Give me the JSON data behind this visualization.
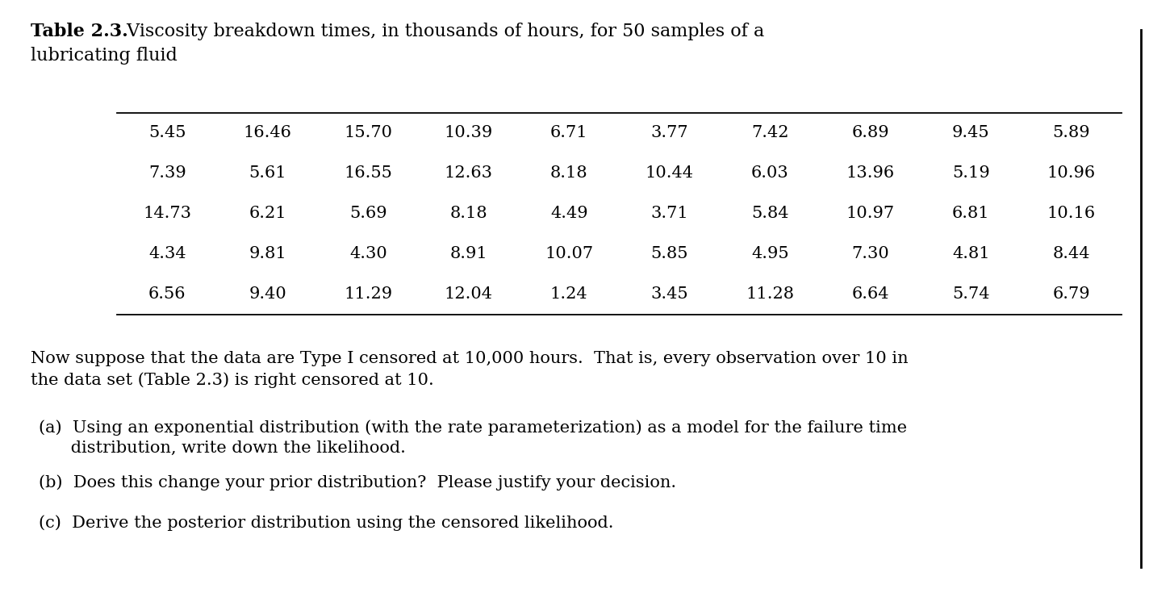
{
  "title_bold": "Table 2.3.",
  "title_rest": " Viscosity breakdown times, in thousands of hours, for 50 samples of a",
  "title_line2": "lubricating fluid",
  "table_rows": [
    [
      "5.45",
      "16.46",
      "15.70",
      "10.39",
      "6.71",
      "3.77",
      "7.42",
      "6.89",
      "9.45",
      "5.89"
    ],
    [
      "7.39",
      "5.61",
      "16.55",
      "12.63",
      "8.18",
      "10.44",
      "6.03",
      "13.96",
      "5.19",
      "10.96"
    ],
    [
      "14.73",
      "6.21",
      "5.69",
      "8.18",
      "4.49",
      "3.71",
      "5.84",
      "10.97",
      "6.81",
      "10.16"
    ],
    [
      "4.34",
      "9.81",
      "4.30",
      "8.91",
      "10.07",
      "5.85",
      "4.95",
      "7.30",
      "4.81",
      "8.44"
    ],
    [
      "6.56",
      "9.40",
      "11.29",
      "12.04",
      "1.24",
      "3.45",
      "11.28",
      "6.64",
      "5.74",
      "6.79"
    ]
  ],
  "paragraph_line1": "Now suppose that the data are Type I censored at 10,000 hours.  That is, every observation over 10 in",
  "paragraph_line2": "the data set (Table 2.3) is right censored at 10.",
  "item_a_line1": "(a)  Using an exponential distribution (with the rate parameterization) as a model for the failure time",
  "item_a_line2": "      distribution, write down the likelihood.",
  "item_b": "(b)  Does this change your prior distribution?  Please justify your decision.",
  "item_c": "(c)  Derive the posterior distribution using the censored likelihood.",
  "background_color": "#ffffff",
  "text_color": "#000000",
  "fig_width": 14.24,
  "fig_height": 7.4,
  "dpi": 100
}
